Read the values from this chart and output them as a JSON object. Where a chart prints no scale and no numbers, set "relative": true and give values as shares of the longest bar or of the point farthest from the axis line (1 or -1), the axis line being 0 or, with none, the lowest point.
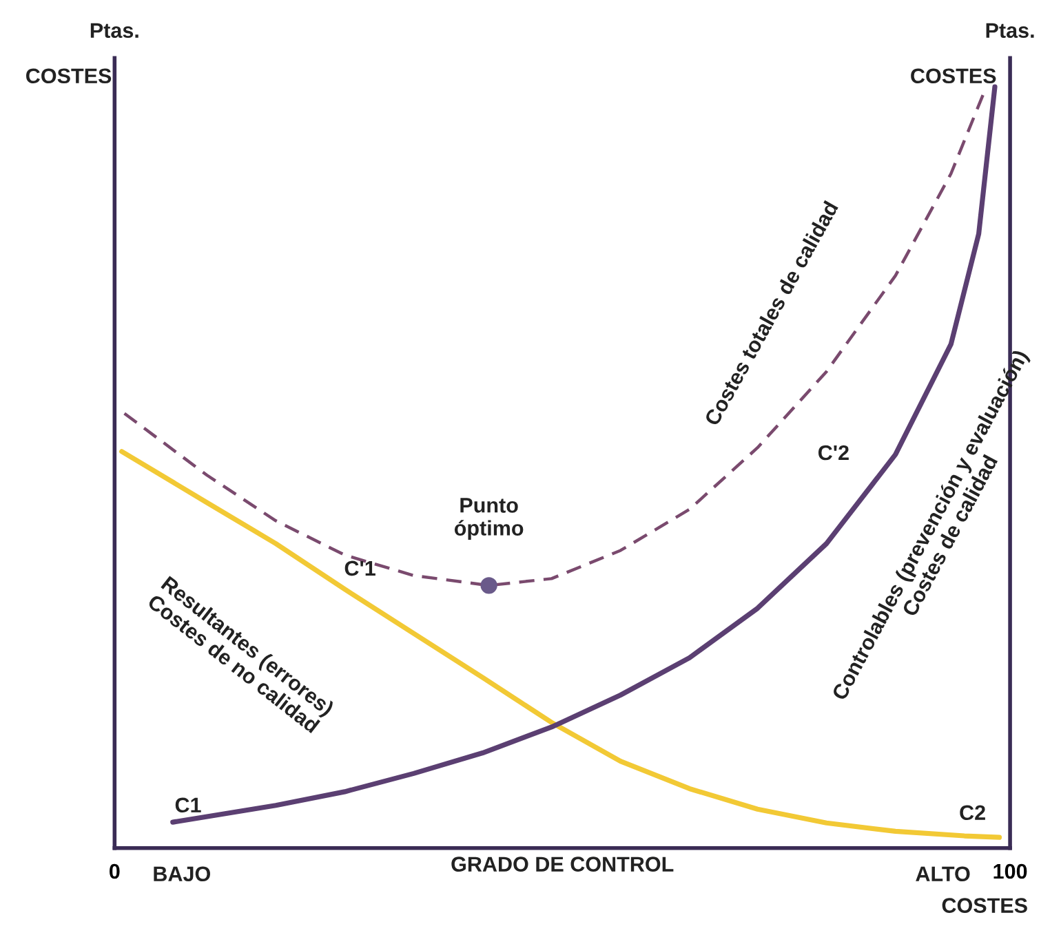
{
  "chart_data": {
    "type": "line",
    "relative": true,
    "xlabel": "GRADO DE CONTROL",
    "ylabel": "Ptas.",
    "y2label": "Ptas.",
    "xlim": [
      0,
      100
    ],
    "xticks": [
      0,
      100
    ],
    "legend": false,
    "tick_labels": "x",
    "series": [
      {
        "color": "#f2c935",
        "line_style": "solid",
        "marker": "none",
        "x": [
          0.8,
          10.3,
          18.0,
          25.7,
          33.4,
          41.1,
          48.8,
          56.5,
          64.2,
          71.8,
          79.5,
          87.2,
          94.9,
          98.8
        ],
        "values": [
          0.521,
          0.454,
          0.4,
          0.34,
          0.282,
          0.224,
          0.165,
          0.114,
          0.078,
          0.051,
          0.033,
          0.022,
          0.016,
          0.014
        ]
      },
      {
        "color": "#5b3f72",
        "line_style": "solid",
        "marker": "none",
        "x": [
          6.5,
          18.0,
          25.7,
          33.4,
          41.1,
          48.8,
          56.5,
          64.2,
          71.8,
          79.5,
          87.2,
          93.4,
          96.5,
          98.3
        ],
        "values": [
          0.034,
          0.056,
          0.074,
          0.098,
          0.125,
          0.159,
          0.201,
          0.25,
          0.315,
          0.4,
          0.517,
          0.662,
          0.807,
          1.0
        ]
      },
      {
        "color": "#7a4a6e",
        "line_style": "dashed",
        "marker": "none",
        "x": [
          1.1,
          10.3,
          18.0,
          25.7,
          33.4,
          41.8,
          48.8,
          56.5,
          64.2,
          71.8,
          79.5,
          87.2,
          93.4,
          97.2
        ],
        "values": [
          0.571,
          0.49,
          0.43,
          0.385,
          0.358,
          0.345,
          0.354,
          0.391,
          0.445,
          0.526,
          0.626,
          0.752,
          0.886,
          0.996
        ]
      },
      {
        "type": "scatter",
        "color": "#6a5a8a",
        "marker": "circle",
        "x": [
          41.8
        ],
        "values": [
          0.345
        ]
      }
    ],
    "annotations": [
      "COSTES",
      "COSTES",
      "COSTES",
      "BAJO",
      "ALTO",
      {
        "text": "C1",
        "x": 6.5,
        "y": 0.034
      },
      {
        "text": "C'1",
        "x": 25.7,
        "y": 0.34
      },
      {
        "text": "C2",
        "x": 98.8,
        "y": 0.014
      },
      {
        "text": "C'2",
        "x": 87.2,
        "y": 0.517
      },
      {
        "text": "Punto\nóptimo",
        "x": 41.8,
        "y": 0.345
      },
      {
        "text": "Resultantes (errores)\nCostes de no calidad",
        "x": 25.7,
        "y": 0.34
      },
      {
        "text": "Costes totales de calidad",
        "x": 79.5,
        "y": 0.626
      },
      {
        "text": "Controlables (prevención y evaluación)\nCostes de calidad",
        "x": 87.2,
        "y": 0.517
      }
    ]
  }
}
